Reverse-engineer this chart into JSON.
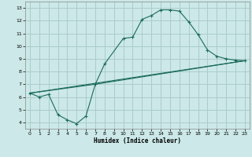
{
  "xlabel": "Humidex (Indice chaleur)",
  "xlim": [
    -0.5,
    23.5
  ],
  "ylim": [
    3.5,
    13.5
  ],
  "xticks": [
    0,
    1,
    2,
    3,
    4,
    5,
    6,
    7,
    8,
    9,
    10,
    11,
    12,
    13,
    14,
    15,
    16,
    17,
    18,
    19,
    20,
    21,
    22,
    23
  ],
  "yticks": [
    4,
    5,
    6,
    7,
    8,
    9,
    10,
    11,
    12,
    13
  ],
  "bg_color": "#cce8e8",
  "grid_color": "#aacccc",
  "line_color": "#1a6a5a",
  "line1_x": [
    0,
    1,
    2,
    3,
    4,
    5,
    6,
    7,
    8,
    10,
    11,
    12,
    13,
    14,
    15,
    16,
    17,
    18,
    19,
    20,
    21,
    22,
    23
  ],
  "line1_y": [
    6.3,
    6.0,
    6.2,
    4.6,
    4.2,
    3.9,
    4.5,
    7.0,
    8.6,
    10.6,
    10.7,
    12.1,
    12.4,
    12.85,
    12.85,
    12.75,
    11.9,
    10.9,
    9.7,
    9.2,
    9.0,
    8.9,
    8.85
  ],
  "line2_x": [
    0,
    23
  ],
  "line2_y": [
    6.3,
    8.85
  ],
  "line3_x": [
    0,
    7,
    23
  ],
  "line3_y": [
    6.3,
    7.0,
    8.85
  ]
}
